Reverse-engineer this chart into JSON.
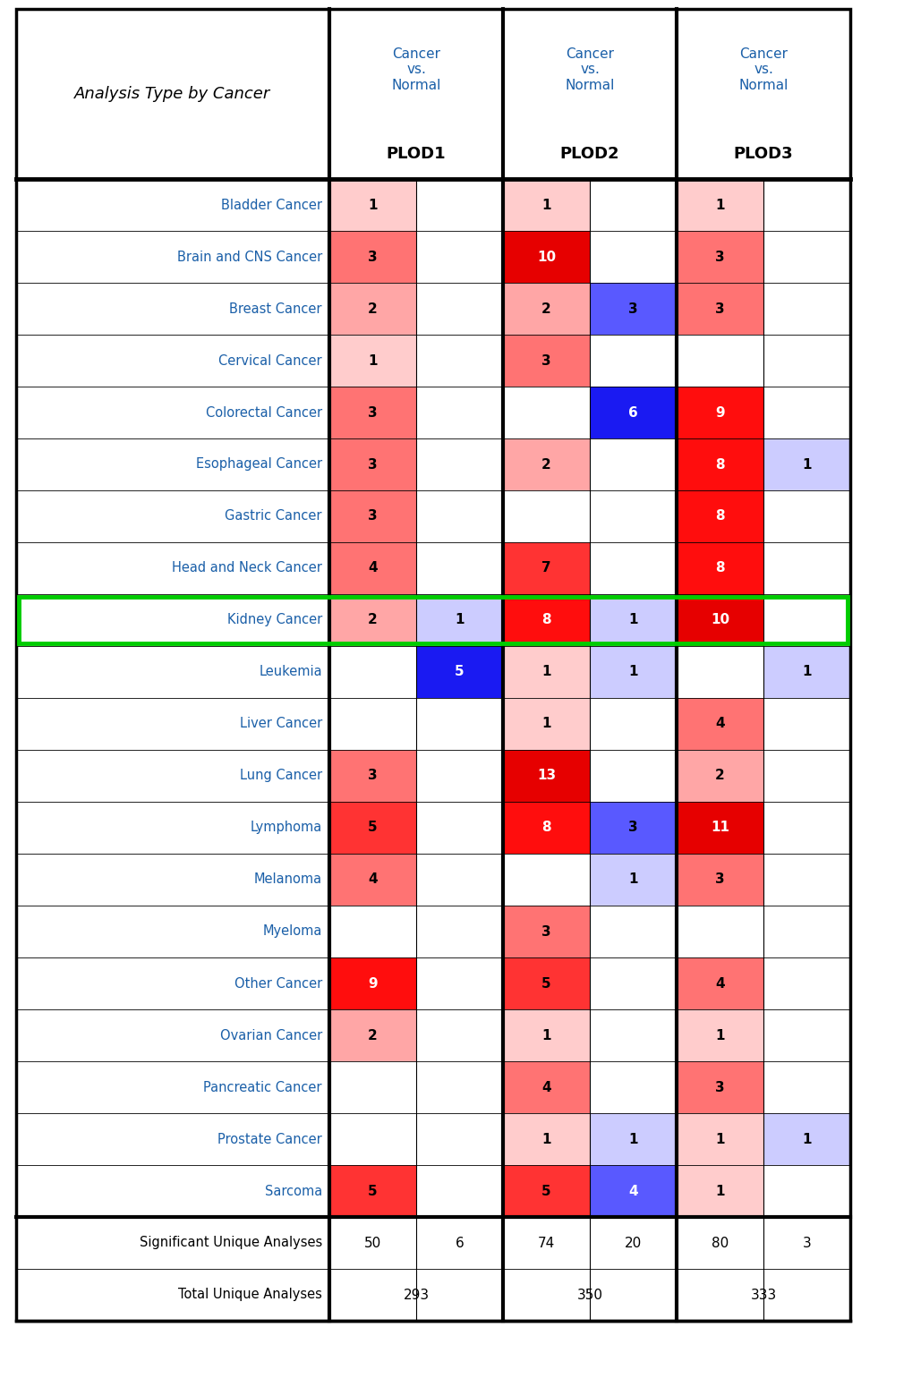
{
  "cancer_types": [
    "Bladder Cancer",
    "Brain and CNS Cancer",
    "Breast Cancer",
    "Cervical Cancer",
    "Colorectal Cancer",
    "Esophageal Cancer",
    "Gastric Cancer",
    "Head and Neck Cancer",
    "Kidney Cancer",
    "Leukemia",
    "Liver Cancer",
    "Lung Cancer",
    "Lymphoma",
    "Melanoma",
    "Myeloma",
    "Other Cancer",
    "Ovarian Cancer",
    "Pancreatic Cancer",
    "Prostate Cancer",
    "Sarcoma"
  ],
  "data": {
    "PLOD1": {
      "up": [
        1,
        3,
        2,
        1,
        3,
        3,
        3,
        4,
        2,
        0,
        0,
        3,
        5,
        4,
        0,
        9,
        2,
        0,
        0,
        5
      ],
      "down": [
        0,
        0,
        0,
        0,
        0,
        0,
        0,
        0,
        1,
        5,
        0,
        0,
        0,
        0,
        0,
        0,
        0,
        0,
        0,
        0
      ]
    },
    "PLOD2": {
      "up": [
        1,
        10,
        2,
        3,
        0,
        2,
        0,
        7,
        8,
        1,
        1,
        13,
        8,
        0,
        3,
        5,
        1,
        4,
        1,
        5
      ],
      "down": [
        0,
        0,
        3,
        0,
        6,
        0,
        0,
        0,
        1,
        1,
        0,
        0,
        3,
        1,
        0,
        0,
        0,
        0,
        1,
        4
      ]
    },
    "PLOD3": {
      "up": [
        1,
        3,
        3,
        0,
        9,
        8,
        8,
        8,
        10,
        0,
        4,
        2,
        11,
        3,
        0,
        4,
        1,
        3,
        1,
        1
      ],
      "down": [
        0,
        0,
        0,
        0,
        0,
        1,
        0,
        0,
        0,
        1,
        0,
        0,
        0,
        0,
        0,
        0,
        0,
        0,
        1,
        0
      ]
    }
  },
  "significant_unique": [
    50,
    6,
    74,
    20,
    80,
    3
  ],
  "total_unique": [
    293,
    350,
    333
  ],
  "highlight_row": "Kidney Cancer",
  "highlight_color": "#00cc00",
  "cancer_label_color": "#1a5fa8",
  "header_color": "#1a5fa8",
  "bg_color": "#ffffff"
}
